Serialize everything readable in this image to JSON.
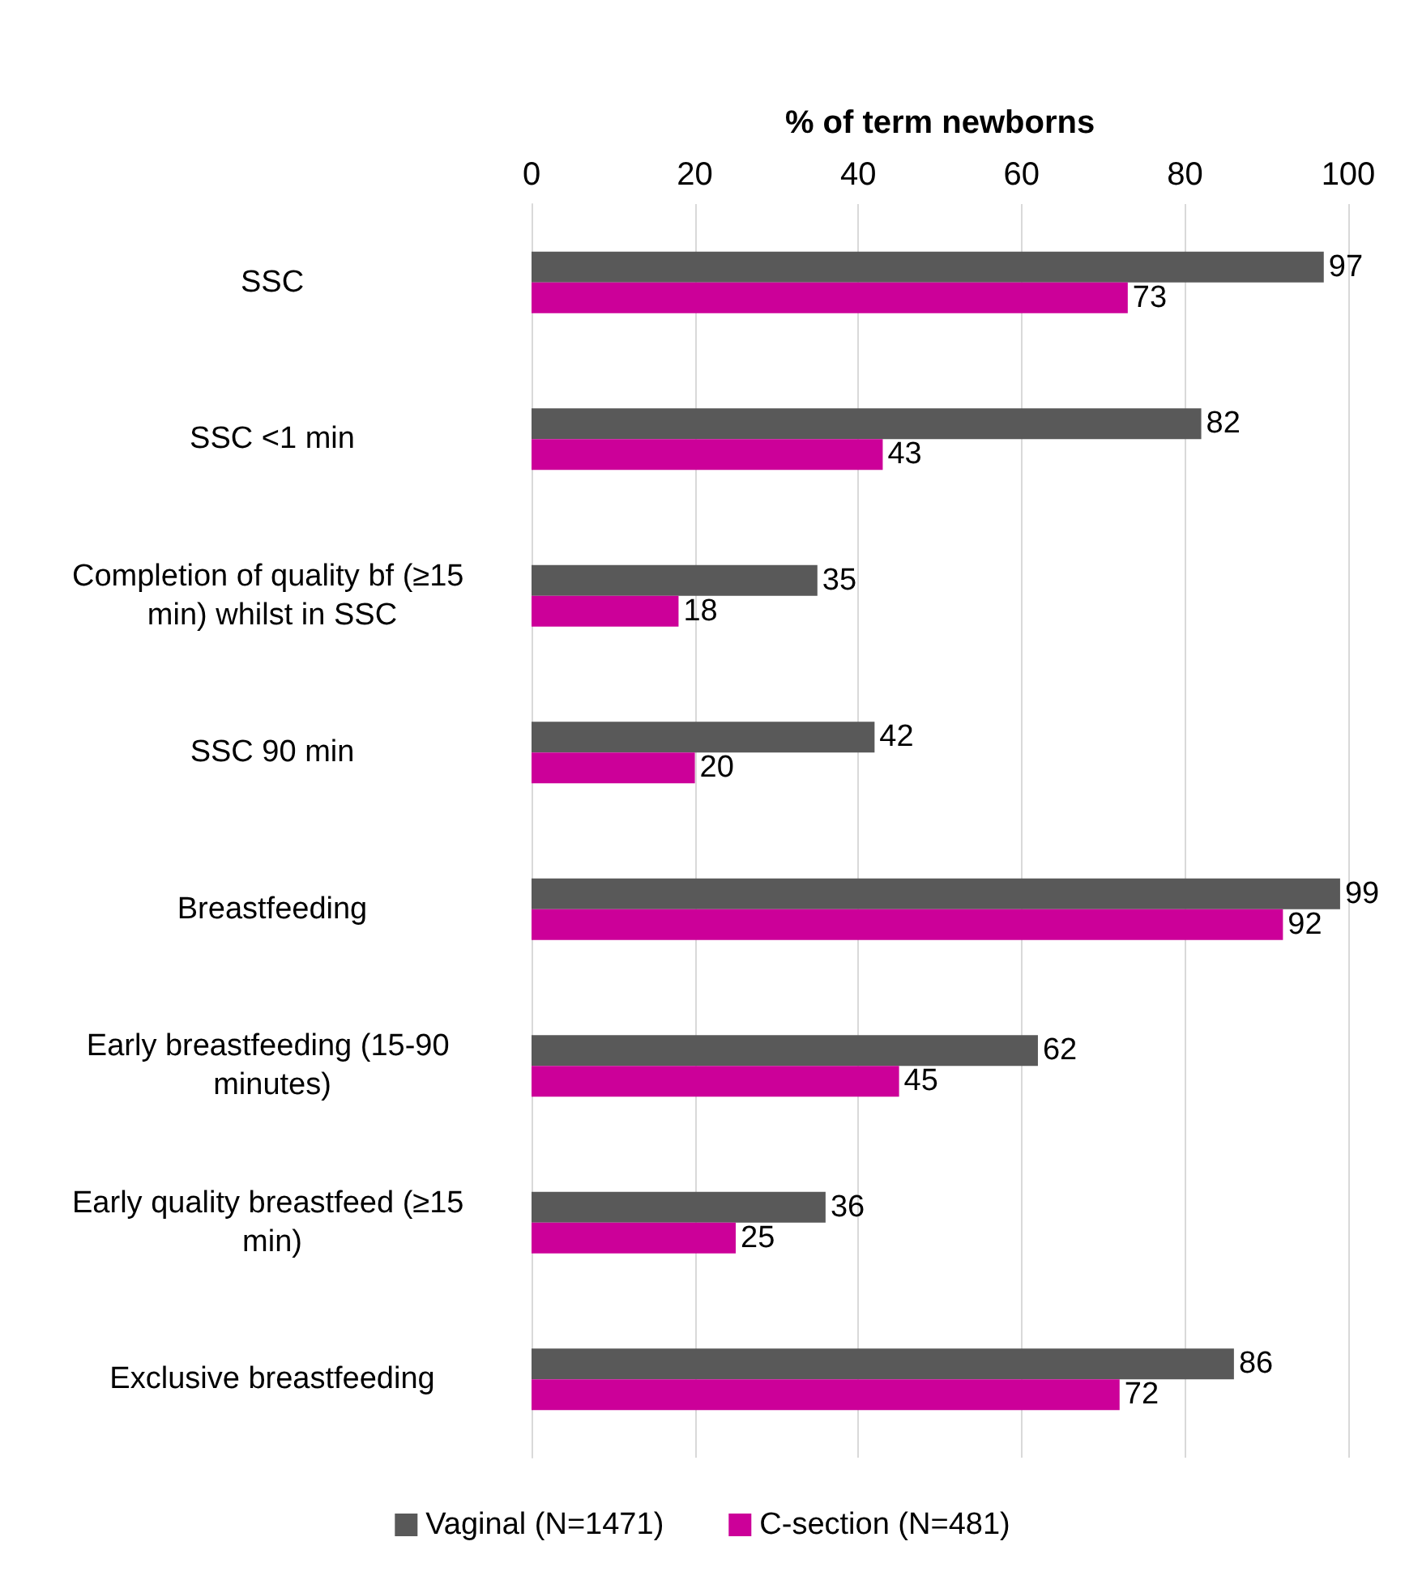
{
  "chart_data": {
    "type": "bar",
    "orientation": "horizontal",
    "xlabel": "% of term newborns",
    "categories": [
      "SSC",
      "SSC <1 min",
      "Completion of quality bf (≥15 min) whilst in SSC",
      "SSC 90 min",
      "Breastfeeding",
      "Early breastfeeding (15-90 minutes)",
      "Early quality breastfeed (≥15 min)",
      "Exclusive breastfeeding"
    ],
    "series": [
      {
        "name": "Vaginal (N=1471)",
        "color": "#595959",
        "values": [
          97,
          82,
          35,
          42,
          99,
          62,
          36,
          86
        ]
      },
      {
        "name": "C-section (N=481)",
        "color": "#cc0099",
        "values": [
          73,
          43,
          18,
          20,
          92,
          45,
          25,
          72
        ]
      }
    ],
    "xlim": [
      0,
      100
    ],
    "xticks": [
      0,
      20,
      40,
      60,
      80,
      100
    ],
    "grid": "x",
    "legend": "bottom",
    "data_labels": true
  }
}
